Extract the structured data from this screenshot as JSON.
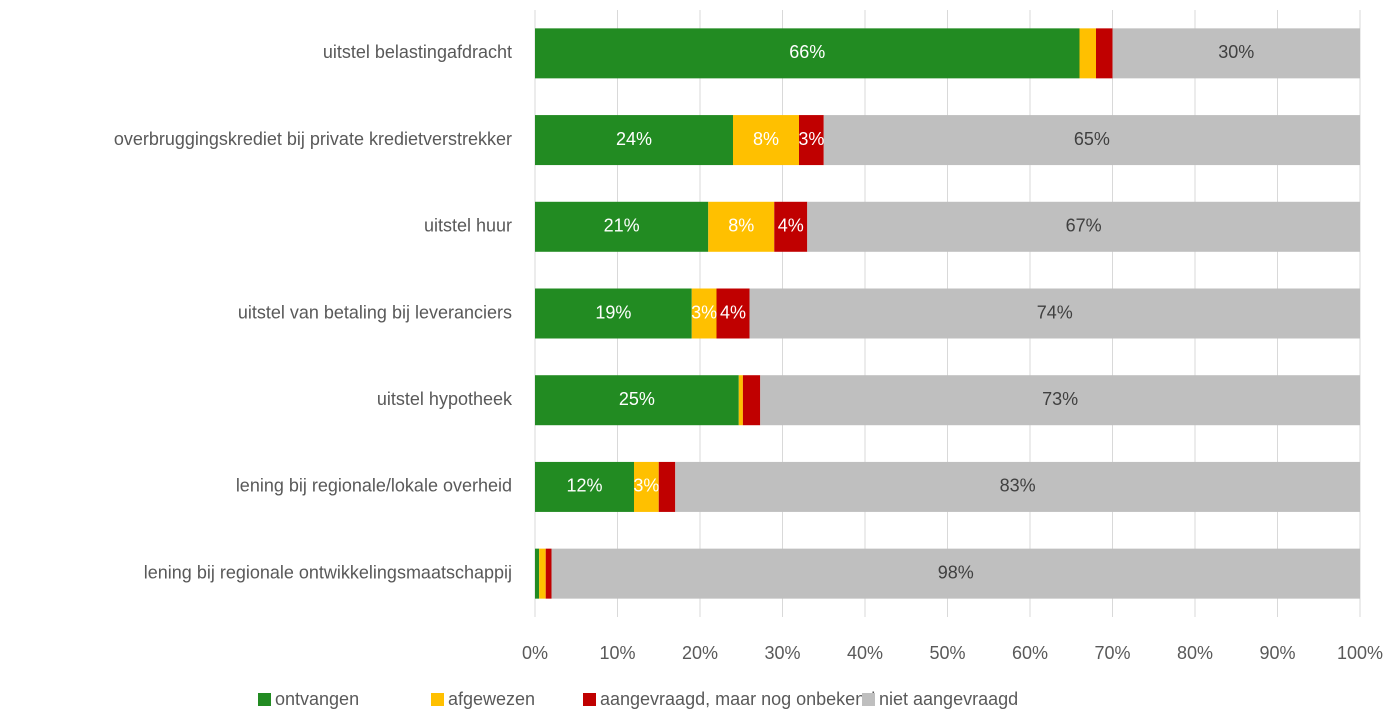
{
  "chart_data": {
    "type": "stacked_barh",
    "categories": [
      "uitstel belastingafdracht",
      "overbruggingskrediet bij private kredietverstrekker",
      "uitstel huur",
      "uitstel van betaling bij leveranciers",
      "uitstel hypotheek",
      "lening bij regionale/lokale overheid",
      "lening bij regionale ontwikkelingsmaatschappij"
    ],
    "series": [
      {
        "name": "ontvangen",
        "color": "#228b22",
        "label_color": "#ffffff",
        "values": [
          66,
          24,
          21,
          19,
          24.7,
          12,
          0.5
        ],
        "value_labels": [
          "66%",
          "24%",
          "21%",
          "19%",
          "25%",
          "12%",
          null
        ]
      },
      {
        "name": "afgewezen",
        "color": "#ffc000",
        "label_color": "#ffffff",
        "values": [
          2,
          8,
          8,
          3,
          0.5,
          3,
          0.8
        ],
        "value_labels": [
          null,
          "8%",
          "8%",
          "3%",
          null,
          "3%",
          null
        ]
      },
      {
        "name": "aangevraagd, maar nog onbekend",
        "color": "#c00000",
        "label_color": "#ffffff",
        "values": [
          2,
          3,
          4,
          4,
          2.1,
          2,
          0.7
        ],
        "value_labels": [
          null,
          "3%",
          "4%",
          "4%",
          null,
          null,
          null
        ]
      },
      {
        "name": "niet aangevraagd",
        "color": "#bfbfbf",
        "label_color": "#404040",
        "values": [
          30,
          65,
          67,
          74,
          72.7,
          83,
          98
        ],
        "value_labels": [
          "30%",
          "65%",
          "67%",
          "74%",
          "73%",
          "83%",
          "98%"
        ]
      }
    ],
    "xlim": [
      0,
      100
    ],
    "xticks": [
      {
        "value": 0,
        "label": "0%"
      },
      {
        "value": 10,
        "label": "10%"
      },
      {
        "value": 20,
        "label": "20%"
      },
      {
        "value": 30,
        "label": "30%"
      },
      {
        "value": 40,
        "label": "40%"
      },
      {
        "value": 50,
        "label": "50%"
      },
      {
        "value": 60,
        "label": "60%"
      },
      {
        "value": 70,
        "label": "70%"
      },
      {
        "value": 80,
        "label": "80%"
      },
      {
        "value": 90,
        "label": "90%"
      },
      {
        "value": 100,
        "label": "100%"
      }
    ],
    "grid": true,
    "legend": "bottom"
  }
}
